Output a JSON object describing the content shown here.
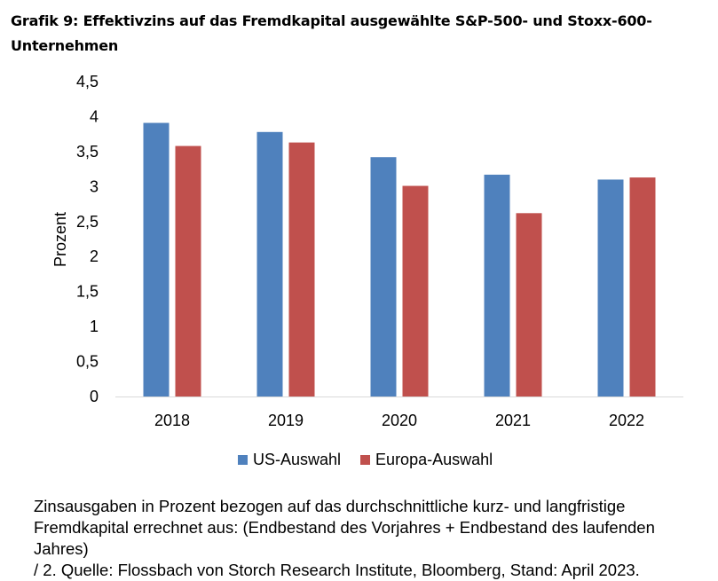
{
  "title_line1": "Grafik 9: Effektivzins auf das Fremdkapital ausgewählte S&P-500- und Stoxx-600-",
  "title_line2": "Unternehmen",
  "caption_line1": "Zinsausgaben in Prozent bezogen auf das durchschnittliche kurz- und langfristige",
  "caption_line2": "Fremdkapital errechnet aus: (Endbestand des Vorjahres + Endbestand des laufenden Jahres)",
  "caption_line3": "/ 2. Quelle: Flossbach von Storch Research Institute, Bloomberg, Stand: April 2023.",
  "chart_data": {
    "type": "bar",
    "title": "Grafik 9: Effektivzins auf das Fremdkapital ausgewählte S&P-500- und Stoxx-600-Unternehmen",
    "categories": [
      "2018",
      "2019",
      "2020",
      "2021",
      "2022"
    ],
    "series": [
      {
        "name": "US-Auswahl",
        "color": "#4f81bd",
        "values": [
          3.91,
          3.78,
          3.42,
          3.17,
          3.1
        ]
      },
      {
        "name": "Europa-Auswahl",
        "color": "#c0504d",
        "values": [
          3.58,
          3.63,
          3.01,
          2.62,
          3.13
        ]
      }
    ],
    "xlabel": "",
    "ylabel": "Prozent",
    "ylim": [
      0,
      4.5
    ],
    "yticks": [
      0,
      0.5,
      1,
      1.5,
      2,
      2.5,
      3,
      3.5,
      4,
      4.5
    ],
    "ytick_labels": [
      "0",
      "0,5",
      "1",
      "1,5",
      "2",
      "2,5",
      "3",
      "3,5",
      "4",
      "4,5"
    ],
    "grid": false,
    "legend_position": "bottom"
  }
}
